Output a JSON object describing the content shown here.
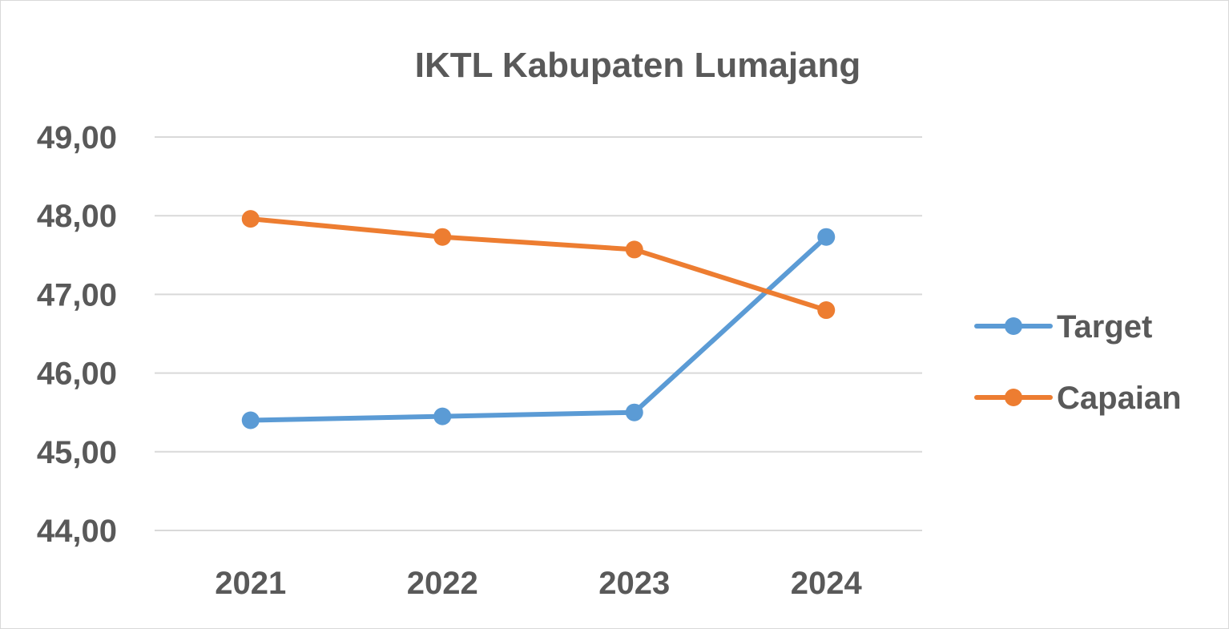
{
  "chart_data": {
    "type": "line",
    "title": "IKTL Kabupaten Lumajang",
    "categories": [
      "2021",
      "2022",
      "2023",
      "2024"
    ],
    "ylim": [
      44,
      49
    ],
    "yticks": [
      44,
      45,
      46,
      47,
      48,
      49
    ],
    "ytick_labels": [
      "44,00",
      "45,00",
      "46,00",
      "47,00",
      "48,00",
      "49,00"
    ],
    "grid": true,
    "legend_position": "right",
    "series": [
      {
        "name": "Target",
        "color": "#5b9bd5",
        "values": [
          45.4,
          45.45,
          45.5,
          47.73
        ]
      },
      {
        "name": "Capaian",
        "color": "#ed7d31",
        "values": [
          47.96,
          47.73,
          47.57,
          46.8
        ]
      }
    ]
  }
}
